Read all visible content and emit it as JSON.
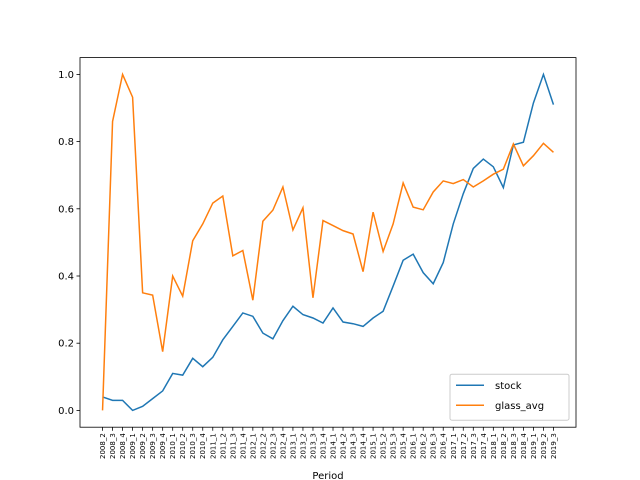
{
  "chart_data": {
    "type": "line",
    "x_label": "Period",
    "categories": [
      "2008_2",
      "2008_3",
      "2008_4",
      "2009_1",
      "2009_2",
      "2009_3",
      "2009_4",
      "2010_1",
      "2010_2",
      "2010_3",
      "2010_4",
      "2011_1",
      "2011_2",
      "2011_3",
      "2011_4",
      "2012_1",
      "2012_2",
      "2012_3",
      "2012_4",
      "2013_1",
      "2013_2",
      "2013_3",
      "2013_4",
      "2014_1",
      "2014_2",
      "2014_3",
      "2014_4",
      "2015_1",
      "2015_2",
      "2015_3",
      "2015_4",
      "2016_1",
      "2016_2",
      "2016_3",
      "2016_4",
      "2017_1",
      "2017_2",
      "2017_3",
      "2017_4",
      "2018_1",
      "2018_2",
      "2018_3",
      "2018_4",
      "2019_1",
      "2019_2",
      "2019_3"
    ],
    "series": [
      {
        "name": "stock",
        "color": "#1f77b4",
        "values": [
          0.04,
          0.03,
          0.03,
          0.0,
          0.012,
          0.035,
          0.058,
          0.11,
          0.105,
          0.155,
          0.13,
          0.158,
          0.21,
          0.25,
          0.29,
          0.28,
          0.23,
          0.213,
          0.267,
          0.31,
          0.285,
          0.275,
          0.26,
          0.305,
          0.263,
          0.258,
          0.25,
          0.275,
          0.295,
          0.37,
          0.447,
          0.465,
          0.41,
          0.377,
          0.44,
          0.555,
          0.645,
          0.72,
          0.748,
          0.725,
          0.663,
          0.79,
          0.798,
          0.915,
          1.0,
          0.91
        ]
      },
      {
        "name": "glass_avg",
        "color": "#ff7f0e",
        "values": [
          0.0,
          0.86,
          1.0,
          0.932,
          0.35,
          0.343,
          0.175,
          0.4,
          0.34,
          0.505,
          0.555,
          0.617,
          0.638,
          0.46,
          0.476,
          0.328,
          0.563,
          0.596,
          0.665,
          0.537,
          0.603,
          0.335,
          0.565,
          0.55,
          0.535,
          0.525,
          0.413,
          0.59,
          0.473,
          0.555,
          0.677,
          0.605,
          0.597,
          0.65,
          0.683,
          0.675,
          0.687,
          0.665,
          0.683,
          0.703,
          0.718,
          0.793,
          0.728,
          0.758,
          0.795,
          0.768
        ]
      }
    ],
    "ylim": [
      -0.05,
      1.05
    ],
    "yticks": [
      {
        "value": 0,
        "label": "0.0"
      },
      0.2,
      0.4,
      0.6,
      0.8,
      {
        "value": 1,
        "label": "1.0"
      }
    ],
    "legend": "lower right"
  }
}
